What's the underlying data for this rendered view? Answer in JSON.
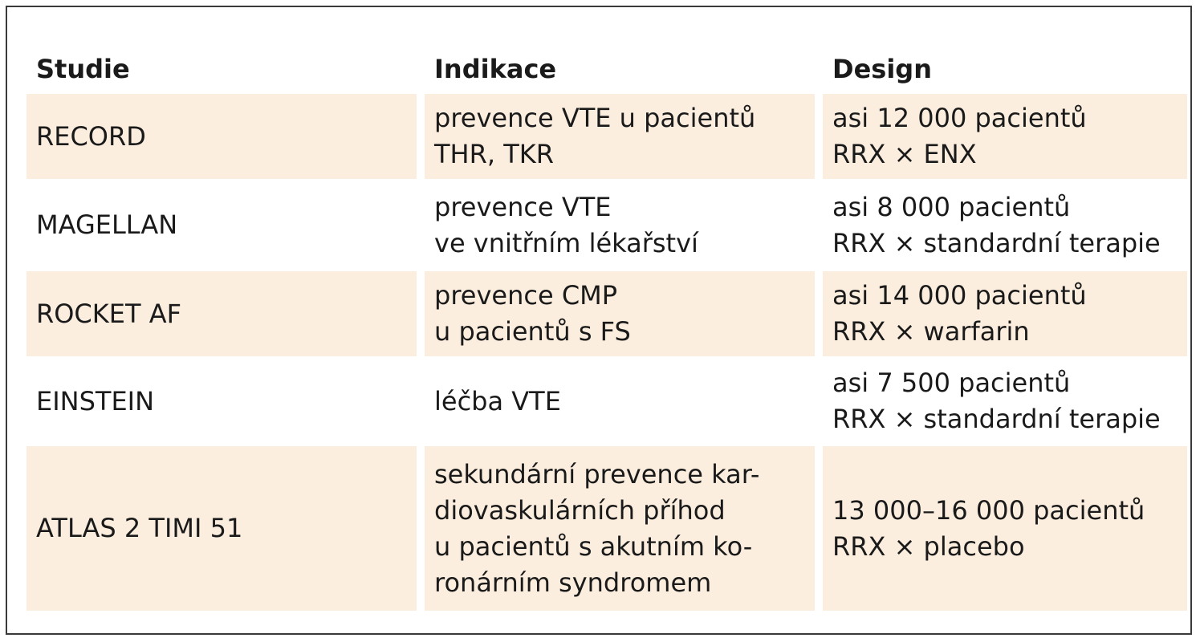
{
  "table": {
    "headers": [
      "Studie",
      "Indikace",
      "Design"
    ],
    "rows": [
      {
        "study": "RECORD",
        "indication": [
          "prevence VTE u pacientů",
          "THR, TKR"
        ],
        "design": [
          "asi 12 000 pacientů",
          "RRX × ENX"
        ],
        "shaded": true
      },
      {
        "study": "MAGELLAN",
        "indication": [
          "prevence VTE",
          "ve vnitřním lékařství"
        ],
        "design": [
          "asi 8 000 pacientů",
          "RRX × standardní terapie"
        ],
        "shaded": false
      },
      {
        "study": "ROCKET AF",
        "indication": [
          "prevence CMP",
          "u pacientů s FS"
        ],
        "design": [
          "asi 14 000 pacientů",
          "RRX × warfarin"
        ],
        "shaded": true
      },
      {
        "study": "EINSTEIN",
        "indication": [
          "léčba VTE"
        ],
        "design": [
          "asi 7 500 pacientů",
          "RRX × standardní terapie"
        ],
        "shaded": false
      },
      {
        "study": "ATLAS 2 TIMI 51",
        "indication": [
          "sekundární prevence kar-",
          "diovaskulárních příhod",
          "u pacientů s akutním ko-",
          "ronárním syndromem"
        ],
        "design": [
          "13 000–16 000 pacientů",
          "RRX × placebo"
        ],
        "shaded": true
      }
    ]
  }
}
